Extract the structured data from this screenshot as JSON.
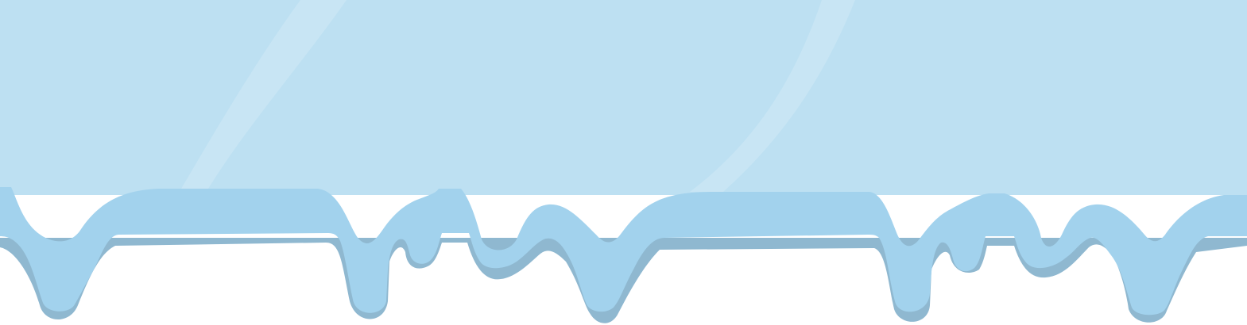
{
  "scene": {
    "kind": "dripping-ice-banner",
    "text_content": []
  },
  "colors": {
    "background": "#ffffff",
    "ice_panel": "#bde0f2",
    "ice_drip_front": "#a2d2ed",
    "ice_drip_shadow": "#8fb8d0",
    "glass_shine": "#d1e9f6"
  }
}
